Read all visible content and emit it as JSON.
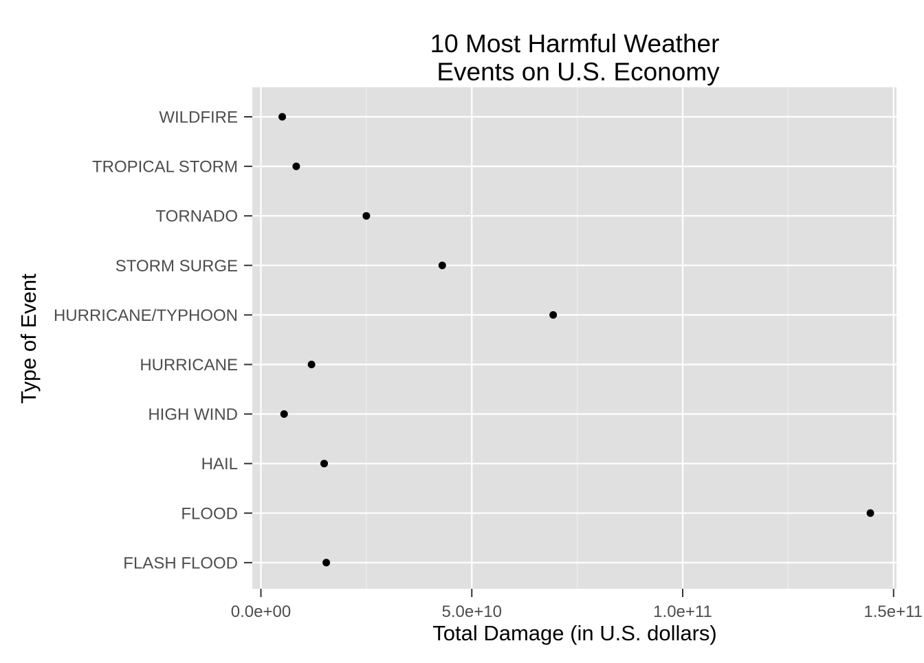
{
  "chart_data": {
    "type": "scatter",
    "title_lines": [
      "10 Most Harmful Weather",
      "Events on U.S. Economy"
    ],
    "xlabel": "Total Damage (in U.S. dollars)",
    "ylabel": "Type of Event",
    "categories": [
      "WILDFIRE",
      "TROPICAL STORM",
      "TORNADO",
      "STORM SURGE",
      "HURRICANE/TYPHOON",
      "HURRICANE",
      "HIGH WIND",
      "HAIL",
      "FLOOD",
      "FLASH FLOOD"
    ],
    "values": [
      5060000000.0,
      8380000000.0,
      25000000000.0,
      43000000000.0,
      69300000000.0,
      12000000000.0,
      5500000000.0,
      15000000000.0,
      144500000000.0,
      15500000000.0
    ],
    "xlim": [
      -2200000000.0,
      150000000000.0
    ],
    "x_ticks": [
      0,
      50000000000.0,
      100000000000.0,
      150000000000.0
    ],
    "x_tick_labels": [
      "0.0e+00",
      "5.0e+10",
      "1.0e+11",
      "1.5e+11"
    ],
    "x_minor_ticks": [
      25000000000.0,
      75000000000.0,
      125000000000.0
    ],
    "panel_background": "#e0e0e0",
    "grid_color": "#ffffff",
    "point_color": "#000000",
    "grid": true,
    "legend": "none"
  }
}
